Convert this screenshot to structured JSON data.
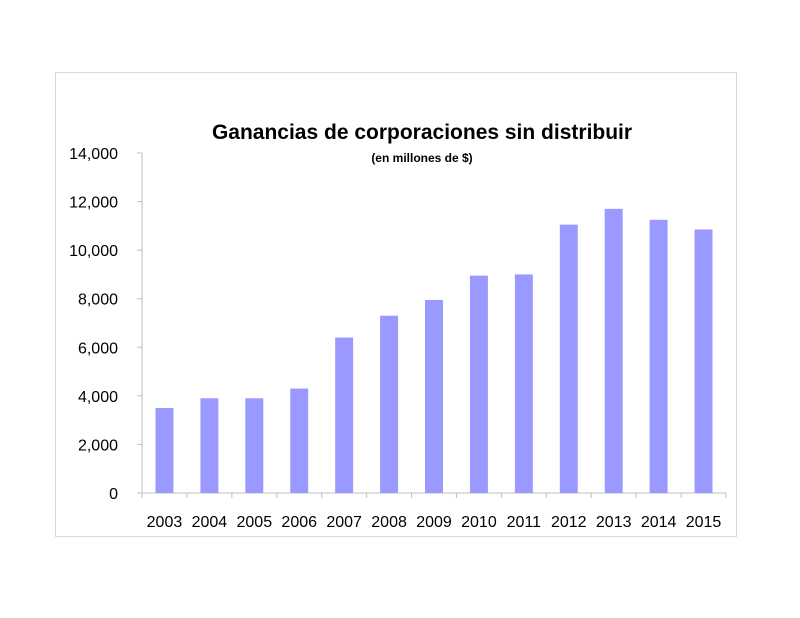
{
  "chart_data": {
    "type": "bar",
    "title": "Ganancias de corporaciones sin distribuir",
    "subtitle": "(en millones de $)",
    "xlabel": "",
    "ylabel": "",
    "categories": [
      "2003",
      "2004",
      "2005",
      "2006",
      "2007",
      "2008",
      "2009",
      "2010",
      "2011",
      "2012",
      "2013",
      "2014",
      "2015"
    ],
    "values": [
      3500,
      3900,
      3900,
      4300,
      6400,
      7300,
      7950,
      8950,
      9000,
      11050,
      11700,
      11250,
      10850
    ],
    "ylim": [
      0,
      14000
    ],
    "yticks": [
      0,
      2000,
      4000,
      6000,
      8000,
      10000,
      12000,
      14000
    ],
    "ytick_labels": [
      "0",
      "2,000",
      "4,000",
      "6,000",
      "8,000",
      "10,000",
      "12,000",
      "14,000"
    ],
    "grid": false,
    "legend": "none",
    "bar_color": "#9999ff"
  }
}
